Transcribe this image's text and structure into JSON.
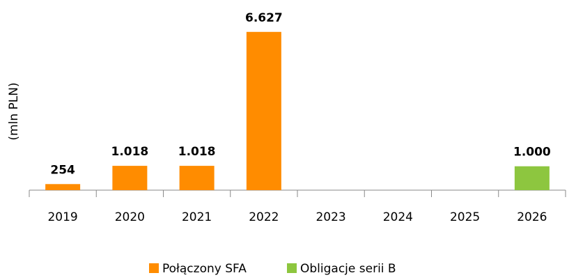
{
  "chart_data": {
    "type": "bar",
    "y_label": "(mln PLN)",
    "categories": [
      "2019",
      "2020",
      "2021",
      "2022",
      "2023",
      "2024",
      "2025",
      "2026"
    ],
    "series": [
      {
        "name": "Połączony SFA",
        "color": "#ff8c00",
        "values": [
          254,
          1018,
          1018,
          6627,
          null,
          null,
          null,
          null
        ],
        "value_labels": [
          "254",
          "1.018",
          "1.018",
          "6.627",
          null,
          null,
          null,
          null
        ]
      },
      {
        "name": "Obligacje serii B",
        "color": "#8dc63f",
        "values": [
          null,
          null,
          null,
          null,
          null,
          null,
          null,
          1000
        ],
        "value_labels": [
          null,
          null,
          null,
          null,
          null,
          null,
          null,
          "1.000"
        ]
      }
    ],
    "ylim": [
      0,
      7000
    ]
  }
}
